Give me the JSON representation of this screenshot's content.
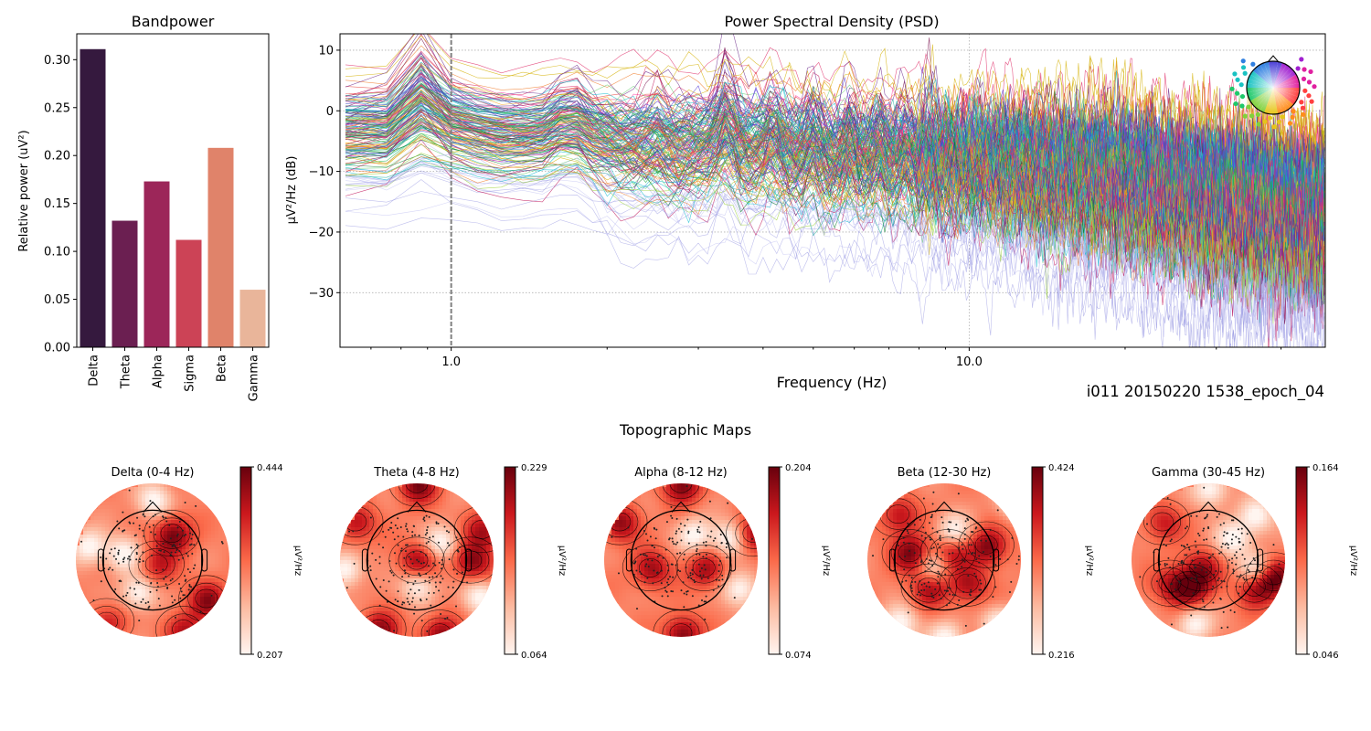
{
  "chart_data": [
    {
      "id": "bandpower",
      "type": "bar",
      "title": "Bandpower",
      "xlabel": "",
      "ylabel": "Relative power (uV²)",
      "categories": [
        "Delta",
        "Theta",
        "Alpha",
        "Sigma",
        "Beta",
        "Gamma"
      ],
      "values": [
        0.311,
        0.132,
        0.173,
        0.112,
        0.208,
        0.06
      ],
      "colors": [
        "#35193e",
        "#6b1f51",
        "#9c2659",
        "#cc4356",
        "#e0836a",
        "#e9b59a"
      ],
      "ylim": [
        0,
        0.327
      ],
      "yticks": [
        0.0,
        0.05,
        0.1,
        0.15,
        0.2,
        0.25,
        0.3
      ],
      "ytick_labels": [
        "0.00",
        "0.05",
        "0.10",
        "0.15",
        "0.20",
        "0.25",
        "0.30"
      ],
      "grid": false
    },
    {
      "id": "psd",
      "type": "line",
      "title": "Power Spectral Density (PSD)",
      "xlabel": "Frequency (Hz)",
      "ylabel": "µV²/Hz (dB)",
      "xscale": "log",
      "xlim": [
        0.61,
        48.7
      ],
      "ylim": [
        -39,
        12.7
      ],
      "xticks": [
        1.0,
        10.0
      ],
      "xtick_labels": [
        "1.0",
        "10.0"
      ],
      "yticks": [
        10,
        0,
        -10,
        -20,
        -30
      ],
      "ytick_labels": [
        "10",
        "0",
        "−10",
        "−20",
        "−30"
      ],
      "grid": "dotted",
      "vline": {
        "x": 1.0,
        "style": "dashed",
        "color": "#808080"
      },
      "n_channels": 180,
      "freq_step": 0.125,
      "freq_start": 0.625,
      "description": "Per-channel PSD curves (EEG), colored by sensor position; mean level about -5 dB at 1 Hz decreasing to about -17 dB near 45 Hz; narrow peaks near 0.85, 1.7, 2.5, 3.4, 4.2, 5.0, 5.9, 6.7 Hz on a subset of channels",
      "envelope": {
        "freqs": [
          0.62,
          0.75,
          0.85,
          1.0,
          1.3,
          1.7,
          2.5,
          3.4,
          5.0,
          7.0,
          10.0,
          20.0,
          30.0,
          48.0
        ],
        "mean_db": [
          -3,
          -4,
          0,
          -2,
          -4,
          -3,
          -6,
          -5,
          -7,
          -8,
          -8,
          -11,
          -14,
          -17
        ],
        "spread_db": [
          5,
          5,
          6,
          5,
          5,
          5,
          6,
          6,
          6,
          6,
          6,
          7,
          7,
          7
        ]
      },
      "peak_freqs": [
        0.85,
        1.7,
        2.5,
        3.4,
        4.2,
        5.0,
        5.9,
        6.7,
        7.5,
        8.4
      ],
      "peak_heights_db": [
        8,
        5,
        5,
        9,
        6,
        6,
        6,
        6,
        5,
        4
      ],
      "channel_colors": [
        "#0a7a2a",
        "#22b14c",
        "#2bb3a0",
        "#17becf",
        "#2c7fb8",
        "#3b4cc0",
        "#5a3fd6",
        "#6e2c8c",
        "#7b1450",
        "#c2185b",
        "#e0306a",
        "#ff3fa4",
        "#e8433f",
        "#f07c2b",
        "#f5a623",
        "#d4b106",
        "#9fd33b",
        "#6fd178",
        "#8a8adf",
        "#b5b5ee"
      ],
      "legend": "sensor-position color wheel inset (top-right)"
    },
    {
      "id": "topomaps",
      "type": "heatmap",
      "title": "Topographic Maps",
      "colormap": "Reds",
      "units_label": "µV²/Hz",
      "maps": [
        {
          "title": "Delta (0-4 Hz)",
          "vmin": 0.207,
          "vmax": 0.444,
          "vmin_label": "0.207",
          "vmax_label": "0.444",
          "hotspots": [
            [
              0.25,
              -0.35,
              1.0
            ],
            [
              0.7,
              0.5,
              0.85
            ],
            [
              0.4,
              0.9,
              0.7
            ],
            [
              -0.6,
              0.8,
              0.55
            ],
            [
              0.05,
              0.05,
              0.6
            ]
          ],
          "coldspots": [
            [
              -0.4,
              -0.1
            ],
            [
              -0.2,
              0.4
            ],
            [
              0.0,
              -0.8
            ],
            [
              -0.85,
              -0.2
            ]
          ]
        },
        {
          "title": "Theta (4-8 Hz)",
          "vmin": 0.064,
          "vmax": 0.229,
          "vmin_label": "0.064",
          "vmax_label": "0.229",
          "hotspots": [
            [
              0.0,
              -1.0,
              0.95
            ],
            [
              0.7,
              0.0,
              0.9
            ],
            [
              0.0,
              0.0,
              0.85
            ],
            [
              -0.5,
              0.9,
              0.9
            ],
            [
              0.3,
              0.95,
              0.85
            ],
            [
              0.85,
              -0.4,
              0.8
            ],
            [
              -0.8,
              -0.5,
              0.7
            ]
          ],
          "coldspots": [
            [
              0.3,
              -0.25
            ],
            [
              -0.95,
              0.1
            ],
            [
              0.8,
              0.45
            ],
            [
              0.0,
              0.3
            ]
          ]
        },
        {
          "title": "Alpha (8-12 Hz)",
          "vmin": 0.074,
          "vmax": 0.204,
          "vmin_label": "0.074",
          "vmax_label": "0.204",
          "hotspots": [
            [
              0.0,
              -1.0,
              0.95
            ],
            [
              0.0,
              0.95,
              0.95
            ],
            [
              -0.8,
              -0.5,
              0.85
            ],
            [
              0.95,
              -0.35,
              0.9
            ],
            [
              0.3,
              0.1,
              0.8
            ],
            [
              -0.4,
              0.1,
              0.8
            ]
          ],
          "coldspots": [
            [
              0.15,
              -0.35
            ],
            [
              0.6,
              -0.3
            ],
            [
              0.75,
              0.35
            ]
          ]
        },
        {
          "title": "Beta (12-30 Hz)",
          "vmin": 0.216,
          "vmax": 0.424,
          "vmin_label": "0.216",
          "vmax_label": "0.424",
          "hotspots": [
            [
              -0.45,
              -0.1,
              1.0
            ],
            [
              0.55,
              -0.2,
              0.95
            ],
            [
              0.05,
              -0.1,
              0.8
            ],
            [
              -0.2,
              0.35,
              0.75
            ],
            [
              0.3,
              0.3,
              0.75
            ],
            [
              -0.6,
              -0.6,
              0.7
            ]
          ],
          "coldspots": [
            [
              0.1,
              -0.4
            ],
            [
              -0.15,
              0.05
            ],
            [
              0.0,
              1.0
            ],
            [
              0.7,
              0.8
            ],
            [
              -0.6,
              0.8
            ],
            [
              0.9,
              -0.8
            ]
          ]
        },
        {
          "title": "Gamma (30-45 Hz)",
          "vmin": 0.046,
          "vmax": 0.164,
          "vmin_label": "0.046",
          "vmax_label": "0.164",
          "hotspots": [
            [
              0.85,
              0.2,
              1.0
            ],
            [
              -0.25,
              0.35,
              0.9
            ],
            [
              0.6,
              0.35,
              0.8
            ],
            [
              -0.1,
              0.1,
              0.75
            ],
            [
              -0.6,
              -0.5,
              0.6
            ],
            [
              -0.5,
              0.3,
              0.6
            ]
          ],
          "coldspots": [
            [
              0.3,
              -0.3
            ],
            [
              -0.2,
              0.8
            ],
            [
              0.0,
              -0.95
            ],
            [
              0.6,
              -0.6
            ],
            [
              0.6,
              0.1
            ]
          ]
        }
      ]
    }
  ],
  "footer": {
    "epoch_label": "i011 20150220 1538_epoch_04"
  }
}
